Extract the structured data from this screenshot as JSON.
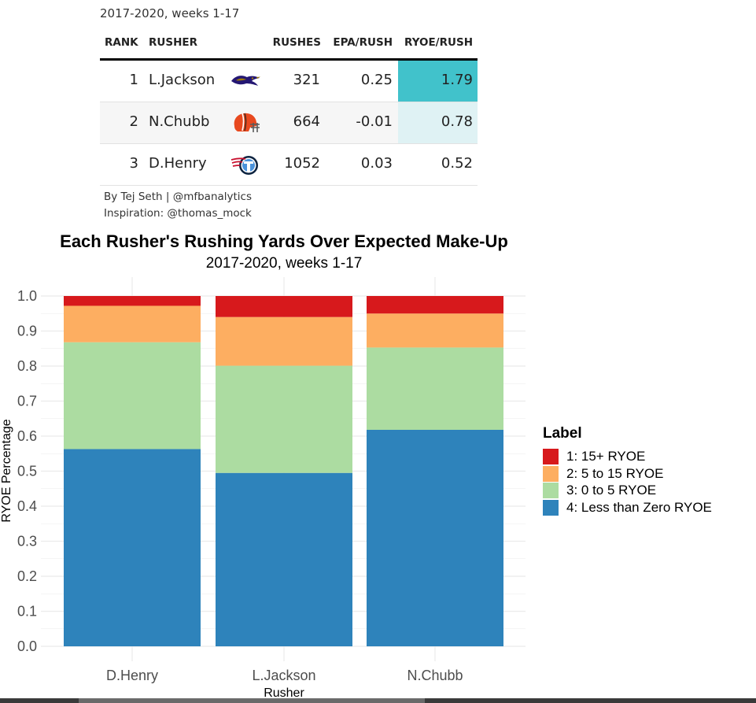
{
  "table": {
    "subtitle": "2017-2020, weeks 1-17",
    "headers": {
      "rank": "RANK",
      "rusher": "RUSHER",
      "rushes": "RUSHES",
      "epa": "EPA/RUSH",
      "ryoe": "RYOE/RUSH"
    },
    "rows": [
      {
        "rank": "1",
        "rusher": "L.Jackson",
        "logo": "ravens-logo-icon",
        "rushes": "321",
        "epa": "0.25",
        "ryoe": "1.79",
        "ryoe_color": "#41c2cb"
      },
      {
        "rank": "2",
        "rusher": "N.Chubb",
        "logo": "browns-helmet-icon",
        "rushes": "664",
        "epa": "-0.01",
        "ryoe": "0.78",
        "ryoe_color": "#dff2f4"
      },
      {
        "rank": "3",
        "rusher": "D.Henry",
        "logo": "titans-logo-icon",
        "rushes": "1052",
        "epa": "0.03",
        "ryoe": "0.52",
        "ryoe_color": "#ffffff"
      }
    ],
    "credit_line1": "By Tej Seth | @mfbanalytics",
    "credit_line2": "Inspiration: @thomas_mock"
  },
  "chart_data": {
    "type": "bar",
    "stacked": true,
    "title": "Each Rusher's Rushing Yards Over Expected Make-Up",
    "subtitle": "2017-2020, weeks 1-17",
    "xlabel": "Rusher",
    "ylabel": "RYOE Percentage",
    "ylim": [
      0,
      1.0
    ],
    "yticks": [
      "0.0",
      "0.1",
      "0.2",
      "0.3",
      "0.4",
      "0.5",
      "0.6",
      "0.7",
      "0.8",
      "0.9",
      "1.0"
    ],
    "categories": [
      "D.Henry",
      "L.Jackson",
      "N.Chubb"
    ],
    "series": [
      {
        "name": "4: Less than Zero RYOE",
        "color": "#2e83bb",
        "values": [
          0.563,
          0.495,
          0.618
        ]
      },
      {
        "name": "3: 0 to 5 RYOE",
        "color": "#acdca1",
        "values": [
          0.305,
          0.306,
          0.235
        ]
      },
      {
        "name": "2: 5 to 15 RYOE",
        "color": "#fdae61",
        "values": [
          0.104,
          0.139,
          0.097
        ]
      },
      {
        "name": "1: 15+ RYOE",
        "color": "#d7191c",
        "values": [
          0.028,
          0.06,
          0.05
        ]
      }
    ],
    "legend": {
      "title": "Label",
      "position": "right",
      "order": [
        "1: 15+ RYOE",
        "2: 5 to 15 RYOE",
        "3: 0 to 5 RYOE",
        "4: Less than Zero RYOE"
      ]
    },
    "grid": true
  }
}
